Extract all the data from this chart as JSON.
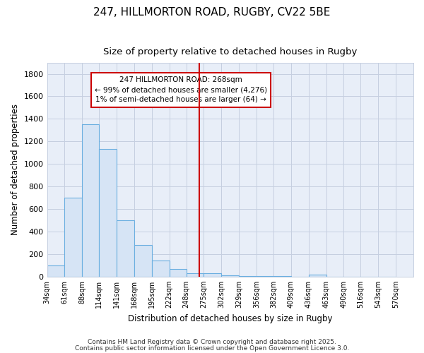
{
  "title1": "247, HILLMORTON ROAD, RUGBY, CV22 5BE",
  "title2": "Size of property relative to detached houses in Rugby",
  "xlabel": "Distribution of detached houses by size in Rugby",
  "ylabel": "Number of detached properties",
  "bar_edges": [
    34,
    61,
    88,
    114,
    141,
    168,
    195,
    222,
    248,
    275,
    302,
    329,
    356,
    382,
    409,
    436,
    463,
    490,
    516,
    543,
    570
  ],
  "bar_values": [
    100,
    700,
    1350,
    1130,
    500,
    280,
    140,
    70,
    30,
    30,
    10,
    5,
    3,
    2,
    1,
    15,
    1,
    1,
    1,
    0
  ],
  "bar_color": "#d6e4f5",
  "bar_edge_color": "#6aaee0",
  "background_color": "#ffffff",
  "plot_bg_color": "#e8eef8",
  "grid_color": "#c5cfe0",
  "red_line_x": 268,
  "annotation_text": "247 HILLMORTON ROAD: 268sqm\n← 99% of detached houses are smaller (4,276)\n1% of semi-detached houses are larger (64) →",
  "annotation_box_color": "#ffffff",
  "annotation_box_edge": "#cc0000",
  "ylim": [
    0,
    1900
  ],
  "yticks": [
    0,
    200,
    400,
    600,
    800,
    1000,
    1200,
    1400,
    1600,
    1800
  ],
  "footer1": "Contains HM Land Registry data © Crown copyright and database right 2025.",
  "footer2": "Contains public sector information licensed under the Open Government Licence 3.0."
}
